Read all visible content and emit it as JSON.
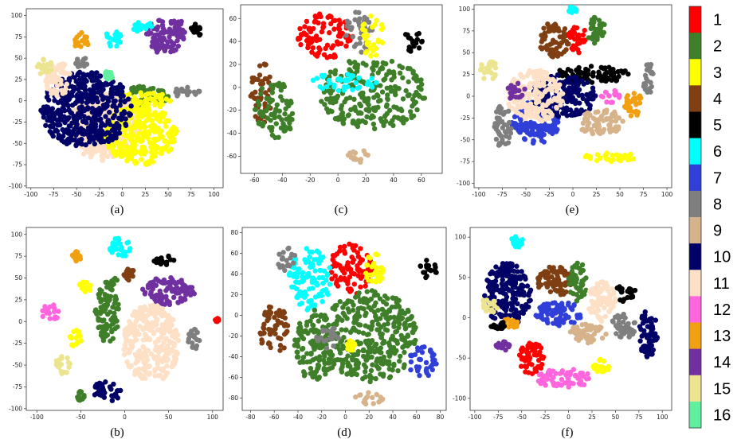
{
  "colorbar": {
    "entries": [
      {
        "label": "1",
        "color": "#ff0000"
      },
      {
        "label": "2",
        "color": "#3f7f2a"
      },
      {
        "label": "3",
        "color": "#ffff00"
      },
      {
        "label": "4",
        "color": "#7f3f12"
      },
      {
        "label": "5",
        "color": "#000000"
      },
      {
        "label": "6",
        "color": "#00ffff"
      },
      {
        "label": "7",
        "color": "#2f3fd8"
      },
      {
        "label": "8",
        "color": "#7f7f7f"
      },
      {
        "label": "9",
        "color": "#d6b38a"
      },
      {
        "label": "10",
        "color": "#000066"
      },
      {
        "label": "11",
        "color": "#fde0c5"
      },
      {
        "label": "12",
        "color": "#ff66dd"
      },
      {
        "label": "13",
        "color": "#f0a010"
      },
      {
        "label": "14",
        "color": "#7030a0"
      },
      {
        "label": "15",
        "color": "#ece48e"
      },
      {
        "label": "16",
        "color": "#60f0a0"
      }
    ]
  },
  "chart_data": [
    {
      "type": "scatter",
      "caption": "(a)",
      "xticks": [
        -100,
        -75,
        -50,
        -25,
        0,
        25,
        50,
        75,
        100
      ],
      "yticks": [
        100,
        75,
        50,
        25,
        0,
        -25,
        -50,
        -75,
        -100
      ],
      "xlim": [
        -105,
        110
      ],
      "ylim": [
        -102,
        108
      ],
      "clusters": [
        {
          "cls": 14,
          "x": 45,
          "y": 75,
          "rx": 22,
          "ry": 20
        },
        {
          "cls": 14,
          "x": 60,
          "y": 85,
          "rx": 10,
          "ry": 10
        },
        {
          "cls": 6,
          "x": -10,
          "y": 72,
          "rx": 10,
          "ry": 10
        },
        {
          "cls": 6,
          "x": 20,
          "y": 88,
          "rx": 12,
          "ry": 8
        },
        {
          "cls": 13,
          "x": -45,
          "y": 70,
          "rx": 8,
          "ry": 10
        },
        {
          "cls": 5,
          "x": 80,
          "y": 82,
          "rx": 6,
          "ry": 8
        },
        {
          "cls": 2,
          "x": 15,
          "y": 5,
          "rx": 35,
          "ry": 12
        },
        {
          "cls": 3,
          "x": 25,
          "y": 0,
          "rx": 30,
          "ry": 10
        },
        {
          "cls": 11,
          "x": -20,
          "y": -30,
          "rx": 40,
          "ry": 40
        },
        {
          "cls": 3,
          "x": 20,
          "y": -40,
          "rx": 40,
          "ry": 35
        },
        {
          "cls": 10,
          "x": -40,
          "y": -10,
          "rx": 50,
          "ry": 45
        },
        {
          "cls": 11,
          "x": -70,
          "y": 25,
          "rx": 15,
          "ry": 20
        },
        {
          "cls": 8,
          "x": 70,
          "y": 10,
          "rx": 15,
          "ry": 6
        },
        {
          "cls": 8,
          "x": -45,
          "y": 45,
          "rx": 8,
          "ry": 6
        },
        {
          "cls": 16,
          "x": -15,
          "y": 30,
          "rx": 5,
          "ry": 5
        },
        {
          "cls": 15,
          "x": -85,
          "y": 40,
          "rx": 8,
          "ry": 10
        }
      ]
    },
    {
      "type": "scatter",
      "caption": "(b)",
      "xticks": [
        -100,
        -50,
        0,
        50,
        100
      ],
      "yticks": [
        100,
        75,
        50,
        25,
        0,
        -25,
        -50,
        -75,
        -100
      ],
      "xlim": [
        -112,
        112
      ],
      "ylim": [
        -102,
        108
      ],
      "clusters": [
        {
          "cls": 6,
          "x": -5,
          "y": 85,
          "rx": 12,
          "ry": 12
        },
        {
          "cls": 5,
          "x": 45,
          "y": 70,
          "rx": 12,
          "ry": 6
        },
        {
          "cls": 14,
          "x": 50,
          "y": 35,
          "rx": 30,
          "ry": 16
        },
        {
          "cls": 11,
          "x": 30,
          "y": -25,
          "rx": 32,
          "ry": 45
        },
        {
          "cls": 2,
          "x": -20,
          "y": 10,
          "rx": 14,
          "ry": 34
        },
        {
          "cls": 13,
          "x": -55,
          "y": 75,
          "rx": 6,
          "ry": 6
        },
        {
          "cls": 3,
          "x": -45,
          "y": 40,
          "rx": 8,
          "ry": 6
        },
        {
          "cls": 2,
          "x": -15,
          "y": 45,
          "rx": 8,
          "ry": 8
        },
        {
          "cls": 12,
          "x": -85,
          "y": 10,
          "rx": 10,
          "ry": 10
        },
        {
          "cls": 3,
          "x": -55,
          "y": -20,
          "rx": 8,
          "ry": 10
        },
        {
          "cls": 15,
          "x": -70,
          "y": -50,
          "rx": 10,
          "ry": 10
        },
        {
          "cls": 10,
          "x": -20,
          "y": -80,
          "rx": 16,
          "ry": 12
        },
        {
          "cls": 8,
          "x": 80,
          "y": -20,
          "rx": 8,
          "ry": 12
        },
        {
          "cls": 4,
          "x": 5,
          "y": 55,
          "rx": 6,
          "ry": 8
        },
        {
          "cls": 1,
          "x": 105,
          "y": 2,
          "rx": 2,
          "ry": 2
        },
        {
          "cls": 2,
          "x": -50,
          "y": -85,
          "rx": 4,
          "ry": 6
        }
      ]
    },
    {
      "type": "scatter",
      "caption": "(c)",
      "xticks": [
        -60,
        -40,
        -20,
        0,
        20,
        40,
        60
      ],
      "yticks": [
        60,
        40,
        20,
        0,
        -20,
        -40,
        -60
      ],
      "xlim": [
        -70,
        75
      ],
      "ylim": [
        -75,
        72
      ],
      "clusters": [
        {
          "cls": 1,
          "x": -10,
          "y": 45,
          "rx": 22,
          "ry": 20
        },
        {
          "cls": 8,
          "x": 15,
          "y": 48,
          "rx": 10,
          "ry": 18
        },
        {
          "cls": 3,
          "x": 25,
          "y": 45,
          "rx": 8,
          "ry": 20
        },
        {
          "cls": 2,
          "x": 25,
          "y": -5,
          "rx": 38,
          "ry": 32
        },
        {
          "cls": 6,
          "x": 5,
          "y": 5,
          "rx": 25,
          "ry": 8
        },
        {
          "cls": 4,
          "x": -55,
          "y": -5,
          "rx": 8,
          "ry": 30
        },
        {
          "cls": 2,
          "x": -45,
          "y": -20,
          "rx": 15,
          "ry": 25
        },
        {
          "cls": 5,
          "x": 55,
          "y": 40,
          "rx": 8,
          "ry": 10
        },
        {
          "cls": 9,
          "x": 15,
          "y": -60,
          "rx": 8,
          "ry": 6
        }
      ]
    },
    {
      "type": "scatter",
      "caption": "(d)",
      "xticks": [
        -80,
        -60,
        -40,
        -20,
        0,
        20,
        40,
        60,
        80
      ],
      "yticks": [
        80,
        60,
        40,
        20,
        0,
        -20,
        -40,
        -60,
        -80
      ],
      "xlim": [
        -87,
        85
      ],
      "ylim": [
        -92,
        85
      ],
      "clusters": [
        {
          "cls": 1,
          "x": 5,
          "y": 45,
          "rx": 18,
          "ry": 25
        },
        {
          "cls": 3,
          "x": 25,
          "y": 45,
          "rx": 10,
          "ry": 15
        },
        {
          "cls": 6,
          "x": -30,
          "y": 35,
          "rx": 18,
          "ry": 30
        },
        {
          "cls": 2,
          "x": 20,
          "y": -20,
          "rx": 40,
          "ry": 45
        },
        {
          "cls": 2,
          "x": -25,
          "y": -30,
          "rx": 18,
          "ry": 35
        },
        {
          "cls": 8,
          "x": -15,
          "y": -20,
          "rx": 10,
          "ry": 12
        },
        {
          "cls": 4,
          "x": -60,
          "y": -15,
          "rx": 12,
          "ry": 25
        },
        {
          "cls": 8,
          "x": -50,
          "y": 55,
          "rx": 8,
          "ry": 12
        },
        {
          "cls": 5,
          "x": 70,
          "y": 45,
          "rx": 8,
          "ry": 10
        },
        {
          "cls": 7,
          "x": 65,
          "y": -45,
          "rx": 12,
          "ry": 15
        },
        {
          "cls": 9,
          "x": 20,
          "y": -80,
          "rx": 12,
          "ry": 6
        },
        {
          "cls": 3,
          "x": 5,
          "y": -30,
          "rx": 4,
          "ry": 6
        }
      ]
    },
    {
      "type": "scatter",
      "caption": "(e)",
      "xticks": [
        -100,
        -75,
        -50,
        -25,
        0,
        25,
        50,
        75,
        100
      ],
      "yticks": [
        100,
        75,
        50,
        25,
        0,
        -25,
        -50,
        -75,
        -100
      ],
      "xlim": [
        -105,
        105
      ],
      "ylim": [
        -105,
        105
      ],
      "clusters": [
        {
          "cls": 4,
          "x": -20,
          "y": 65,
          "rx": 16,
          "ry": 20
        },
        {
          "cls": 1,
          "x": 5,
          "y": 65,
          "rx": 10,
          "ry": 16
        },
        {
          "cls": 2,
          "x": 25,
          "y": 75,
          "rx": 10,
          "ry": 16
        },
        {
          "cls": 5,
          "x": 20,
          "y": 25,
          "rx": 40,
          "ry": 10
        },
        {
          "cls": 7,
          "x": -40,
          "y": -30,
          "rx": 25,
          "ry": 25
        },
        {
          "cls": 10,
          "x": -10,
          "y": 0,
          "rx": 35,
          "ry": 25
        },
        {
          "cls": 11,
          "x": -40,
          "y": 0,
          "rx": 30,
          "ry": 30
        },
        {
          "cls": 3,
          "x": 40,
          "y": -70,
          "rx": 30,
          "ry": 5
        },
        {
          "cls": 6,
          "x": 0,
          "y": 100,
          "rx": 5,
          "ry": 4
        },
        {
          "cls": 15,
          "x": -90,
          "y": 30,
          "rx": 10,
          "ry": 12
        },
        {
          "cls": 8,
          "x": -75,
          "y": -35,
          "rx": 10,
          "ry": 25
        },
        {
          "cls": 9,
          "x": 30,
          "y": -30,
          "rx": 25,
          "ry": 15
        },
        {
          "cls": 13,
          "x": 65,
          "y": -10,
          "rx": 10,
          "ry": 15
        },
        {
          "cls": 14,
          "x": -60,
          "y": 5,
          "rx": 10,
          "ry": 10
        },
        {
          "cls": 12,
          "x": 40,
          "y": 0,
          "rx": 10,
          "ry": 8
        },
        {
          "cls": 8,
          "x": 80,
          "y": 20,
          "rx": 6,
          "ry": 20
        }
      ]
    },
    {
      "type": "scatter",
      "caption": "(f)",
      "xticks": [
        -100,
        -75,
        -50,
        -25,
        0,
        25,
        50,
        75,
        100
      ],
      "yticks": [
        100,
        50,
        0,
        -50,
        -100
      ],
      "xlim": [
        -105,
        110
      ],
      "ylim": [
        -115,
        112
      ],
      "clusters": [
        {
          "cls": 4,
          "x": -15,
          "y": 45,
          "rx": 18,
          "ry": 20
        },
        {
          "cls": 2,
          "x": 10,
          "y": 45,
          "rx": 10,
          "ry": 25
        },
        {
          "cls": 6,
          "x": -55,
          "y": 95,
          "rx": 6,
          "ry": 8
        },
        {
          "cls": 7,
          "x": -10,
          "y": 5,
          "rx": 25,
          "ry": 15
        },
        {
          "cls": 9,
          "x": 20,
          "y": -20,
          "rx": 20,
          "ry": 12
        },
        {
          "cls": 11,
          "x": 35,
          "y": 20,
          "rx": 15,
          "ry": 25
        },
        {
          "cls": 5,
          "x": 60,
          "y": 30,
          "rx": 12,
          "ry": 10
        },
        {
          "cls": 3,
          "x": 35,
          "y": -60,
          "rx": 10,
          "ry": 10
        },
        {
          "cls": 12,
          "x": -5,
          "y": -75,
          "rx": 30,
          "ry": 12
        },
        {
          "cls": 10,
          "x": -65,
          "y": 30,
          "rx": 25,
          "ry": 40
        },
        {
          "cls": 15,
          "x": -85,
          "y": 15,
          "rx": 10,
          "ry": 10
        },
        {
          "cls": 14,
          "x": -70,
          "y": -35,
          "rx": 8,
          "ry": 6
        },
        {
          "cls": 1,
          "x": -40,
          "y": -50,
          "rx": 15,
          "ry": 20
        },
        {
          "cls": 8,
          "x": 60,
          "y": -10,
          "rx": 15,
          "ry": 15
        },
        {
          "cls": 10,
          "x": 85,
          "y": -20,
          "rx": 10,
          "ry": 30
        },
        {
          "cls": 13,
          "x": -60,
          "y": -5,
          "rx": 10,
          "ry": 8
        },
        {
          "cls": 5,
          "x": -75,
          "y": -10,
          "rx": 8,
          "ry": 6
        }
      ]
    }
  ]
}
